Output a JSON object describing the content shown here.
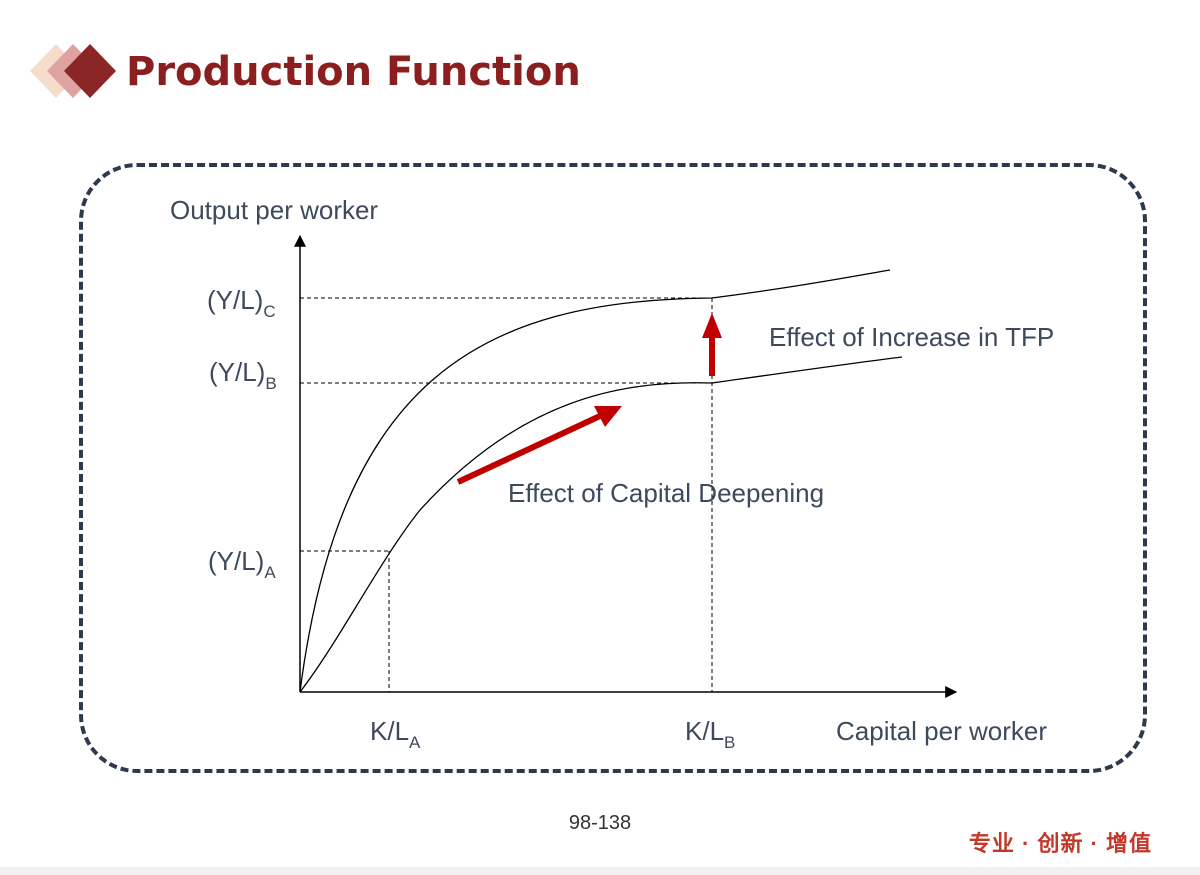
{
  "header": {
    "title": "Production Function"
  },
  "diagram": {
    "y_axis_label": "Output per worker",
    "x_axis_label": "Capital per worker",
    "y_levels": [
      {
        "name": "(Y/L)",
        "sub": "C"
      },
      {
        "name": "(Y/L)",
        "sub": "B"
      },
      {
        "name": "(Y/L)",
        "sub": "A"
      }
    ],
    "x_levels": [
      {
        "name": "K/L",
        "sub": "A"
      },
      {
        "name": "K/L",
        "sub": "B"
      }
    ],
    "annotations": {
      "tfp": "Effect of Increase in TFP",
      "capital_deepening": "Effect of Capital Deepening"
    },
    "colors": {
      "arrow": "#c00000",
      "frame": "#2d3a4d",
      "text": "#3d4a5c"
    }
  },
  "footer": {
    "page_number": "98-138",
    "slogan": "专业 · 创新 · 增值"
  }
}
